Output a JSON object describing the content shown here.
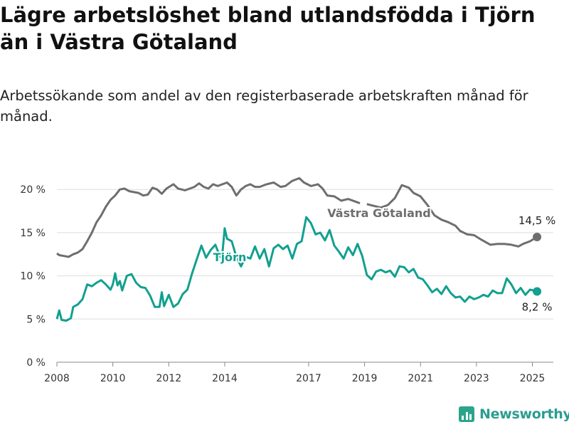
{
  "header": {
    "title": "Lägre arbetslöshet bland utlandsfödda i Tjörn än i Västra Götaland",
    "subtitle": "Arbetssökande som andel av den registerbaserade arbetskraften månad för månad."
  },
  "branding": {
    "logo_text": "Newsworthy",
    "logo_icon": "bar-chart-icon",
    "color": "#2a9d8f"
  },
  "chart_data": {
    "type": "line",
    "title": "Lägre arbetslöshet bland utlandsfödda i Tjörn än i Västra Götaland",
    "subtitle": "Arbetssökande som andel av den registerbaserade arbetskraften månad för månad.",
    "xlabel": "",
    "ylabel": "",
    "x_range": [
      "2008-01",
      "2025-03"
    ],
    "ylim": [
      0,
      21.5
    ],
    "y_ticks": [
      0,
      5,
      10,
      15,
      20
    ],
    "y_tick_labels": [
      "0 %",
      "5 %",
      "10 %",
      "15 %",
      "20 %"
    ],
    "x_ticks": [
      2008,
      2010,
      2012,
      2014,
      2017,
      2019,
      2021,
      2023,
      2025
    ],
    "x_tick_labels": [
      "2008",
      "2010",
      "2012",
      "2014",
      "2017",
      "2019",
      "2021",
      "2023",
      "2025"
    ],
    "grid": "horizontal",
    "legend": "inline labels",
    "series": [
      {
        "name": "Västra Götaland",
        "color": "#6e6e6e",
        "end_label": "14,5 %",
        "points": [
          [
            "2008-01",
            12.6
          ],
          [
            "2008-02",
            12.4
          ],
          [
            "2008-04",
            12.3
          ],
          [
            "2008-06",
            12.2
          ],
          [
            "2008-08",
            12.5
          ],
          [
            "2008-10",
            12.7
          ],
          [
            "2008-12",
            13.1
          ],
          [
            "2009-02",
            14.0
          ],
          [
            "2009-04",
            15.0
          ],
          [
            "2009-06",
            16.2
          ],
          [
            "2009-08",
            17.0
          ],
          [
            "2009-10",
            18.0
          ],
          [
            "2009-12",
            18.8
          ],
          [
            "2010-02",
            19.3
          ],
          [
            "2010-04",
            20.0
          ],
          [
            "2010-06",
            20.1
          ],
          [
            "2010-08",
            19.8
          ],
          [
            "2010-10",
            19.7
          ],
          [
            "2010-12",
            19.6
          ],
          [
            "2011-02",
            19.3
          ],
          [
            "2011-04",
            19.4
          ],
          [
            "2011-06",
            20.2
          ],
          [
            "2011-08",
            20.0
          ],
          [
            "2011-10",
            19.5
          ],
          [
            "2011-12",
            20.1
          ],
          [
            "2012-03",
            20.6
          ],
          [
            "2012-05",
            20.1
          ],
          [
            "2012-08",
            19.9
          ],
          [
            "2012-10",
            20.1
          ],
          [
            "2012-12",
            20.3
          ],
          [
            "2013-02",
            20.7
          ],
          [
            "2013-04",
            20.3
          ],
          [
            "2013-06",
            20.1
          ],
          [
            "2013-08",
            20.6
          ],
          [
            "2013-10",
            20.4
          ],
          [
            "2013-12",
            20.6
          ],
          [
            "2014-02",
            20.8
          ],
          [
            "2014-04",
            20.3
          ],
          [
            "2014-06",
            19.3
          ],
          [
            "2014-08",
            20.0
          ],
          [
            "2014-10",
            20.4
          ],
          [
            "2014-12",
            20.6
          ],
          [
            "2015-02",
            20.3
          ],
          [
            "2015-04",
            20.3
          ],
          [
            "2015-07",
            20.6
          ],
          [
            "2015-10",
            20.8
          ],
          [
            "2016-01",
            20.3
          ],
          [
            "2016-03",
            20.4
          ],
          [
            "2016-06",
            21.0
          ],
          [
            "2016-09",
            21.3
          ],
          [
            "2016-11",
            20.8
          ],
          [
            "2017-02",
            20.4
          ],
          [
            "2017-05",
            20.6
          ],
          [
            "2017-07",
            20.1
          ],
          [
            "2017-09",
            19.3
          ],
          [
            "2017-12",
            19.2
          ],
          [
            "2018-03",
            18.7
          ],
          [
            "2018-06",
            18.9
          ],
          [
            "2018-09",
            18.6
          ],
          [
            "2018-11",
            18.4
          ]
        ],
        "segments_after_gap": [
          [
            "2019-02",
            18.3
          ],
          [
            "2019-05",
            18.1
          ],
          [
            "2019-08",
            17.9
          ],
          [
            "2019-11",
            18.2
          ],
          [
            "2020-02",
            19.0
          ],
          [
            "2020-05",
            20.5
          ],
          [
            "2020-08",
            20.2
          ],
          [
            "2020-10",
            19.6
          ],
          [
            "2021-01",
            19.2
          ],
          [
            "2021-04",
            18.2
          ],
          [
            "2021-07",
            17.0
          ],
          [
            "2021-10",
            16.5
          ],
          [
            "2022-01",
            16.2
          ],
          [
            "2022-04",
            15.8
          ],
          [
            "2022-06",
            15.2
          ],
          [
            "2022-09",
            14.8
          ],
          [
            "2022-12",
            14.7
          ],
          [
            "2023-03",
            14.2
          ],
          [
            "2023-05",
            13.9
          ],
          [
            "2023-07",
            13.6
          ],
          [
            "2023-10",
            13.7
          ],
          [
            "2024-01",
            13.7
          ],
          [
            "2024-04",
            13.6
          ],
          [
            "2024-07",
            13.4
          ],
          [
            "2024-09",
            13.7
          ],
          [
            "2024-12",
            14.0
          ],
          [
            "2025-03",
            14.5
          ]
        ]
      },
      {
        "name": "Tjörn",
        "color": "#12a08f",
        "end_label": "8,2 %",
        "points": [
          [
            "2008-01",
            5.0
          ],
          [
            "2008-02",
            6.0
          ],
          [
            "2008-03",
            4.9
          ],
          [
            "2008-05",
            4.8
          ],
          [
            "2008-07",
            5.1
          ],
          [
            "2008-08",
            6.4
          ],
          [
            "2008-10",
            6.7
          ],
          [
            "2008-12",
            7.3
          ],
          [
            "2009-02",
            9.0
          ],
          [
            "2009-04",
            8.8
          ],
          [
            "2009-06",
            9.2
          ],
          [
            "2009-08",
            9.5
          ],
          [
            "2009-10",
            9.0
          ],
          [
            "2009-12",
            8.4
          ],
          [
            "2010-01",
            9.0
          ],
          [
            "2010-02",
            10.3
          ],
          [
            "2010-03",
            8.9
          ],
          [
            "2010-04",
            9.4
          ],
          [
            "2010-05",
            8.3
          ],
          [
            "2010-07",
            10.0
          ],
          [
            "2010-09",
            10.2
          ],
          [
            "2010-11",
            9.2
          ],
          [
            "2011-01",
            8.7
          ],
          [
            "2011-03",
            8.6
          ],
          [
            "2011-05",
            7.7
          ],
          [
            "2011-07",
            6.4
          ],
          [
            "2011-09",
            6.4
          ],
          [
            "2011-10",
            8.1
          ],
          [
            "2011-11",
            6.5
          ],
          [
            "2012-01",
            7.8
          ],
          [
            "2012-03",
            6.4
          ],
          [
            "2012-05",
            6.8
          ],
          [
            "2012-07",
            7.9
          ],
          [
            "2012-09",
            8.4
          ],
          [
            "2012-11",
            10.3
          ],
          [
            "2013-01",
            11.9
          ],
          [
            "2013-03",
            13.5
          ],
          [
            "2013-05",
            12.1
          ],
          [
            "2013-07",
            13.0
          ],
          [
            "2013-09",
            13.6
          ],
          [
            "2013-11",
            12.2
          ],
          [
            "2013-12",
            12.6
          ],
          [
            "2014-01",
            15.5
          ],
          [
            "2014-02",
            14.3
          ],
          [
            "2014-04",
            14.0
          ],
          [
            "2014-06",
            12.2
          ],
          [
            "2014-08",
            11.1
          ],
          [
            "2014-10",
            12.2
          ],
          [
            "2014-12",
            12.0
          ],
          [
            "2015-02",
            13.4
          ],
          [
            "2015-04",
            12.0
          ],
          [
            "2015-06",
            13.1
          ],
          [
            "2015-08",
            11.1
          ],
          [
            "2015-10",
            13.2
          ],
          [
            "2015-12",
            13.6
          ],
          [
            "2016-02",
            13.1
          ],
          [
            "2016-04",
            13.5
          ],
          [
            "2016-06",
            12.0
          ],
          [
            "2016-08",
            13.7
          ],
          [
            "2016-10",
            14.0
          ],
          [
            "2016-12",
            16.8
          ],
          [
            "2017-02",
            16.1
          ],
          [
            "2017-04",
            14.8
          ],
          [
            "2017-06",
            15.0
          ],
          [
            "2017-08",
            14.1
          ],
          [
            "2017-10",
            15.3
          ],
          [
            "2017-12",
            13.5
          ],
          [
            "2018-02",
            12.8
          ],
          [
            "2018-04",
            12.0
          ],
          [
            "2018-06",
            13.3
          ],
          [
            "2018-08",
            12.4
          ],
          [
            "2018-10",
            13.7
          ],
          [
            "2018-12",
            12.3
          ],
          [
            "2019-02",
            10.1
          ],
          [
            "2019-04",
            9.6
          ],
          [
            "2019-06",
            10.5
          ],
          [
            "2019-08",
            10.7
          ],
          [
            "2019-10",
            10.4
          ],
          [
            "2019-12",
            10.6
          ],
          [
            "2020-02",
            9.9
          ],
          [
            "2020-04",
            11.1
          ],
          [
            "2020-06",
            11.0
          ],
          [
            "2020-08",
            10.4
          ],
          [
            "2020-10",
            10.8
          ],
          [
            "2020-12",
            9.8
          ],
          [
            "2021-02",
            9.6
          ],
          [
            "2021-04",
            8.9
          ],
          [
            "2021-06",
            8.1
          ],
          [
            "2021-08",
            8.5
          ],
          [
            "2021-10",
            7.9
          ],
          [
            "2021-12",
            8.8
          ],
          [
            "2022-02",
            8.0
          ],
          [
            "2022-04",
            7.5
          ],
          [
            "2022-06",
            7.6
          ],
          [
            "2022-08",
            7.0
          ],
          [
            "2022-10",
            7.6
          ],
          [
            "2022-12",
            7.3
          ],
          [
            "2023-02",
            7.5
          ],
          [
            "2023-04",
            7.8
          ],
          [
            "2023-06",
            7.6
          ],
          [
            "2023-08",
            8.3
          ],
          [
            "2023-10",
            8.0
          ],
          [
            "2023-12",
            8.0
          ],
          [
            "2024-02",
            9.7
          ],
          [
            "2024-04",
            9.0
          ],
          [
            "2024-06",
            8.0
          ],
          [
            "2024-08",
            8.6
          ],
          [
            "2024-10",
            7.8
          ],
          [
            "2024-12",
            8.4
          ],
          [
            "2025-03",
            8.2
          ]
        ]
      }
    ]
  }
}
